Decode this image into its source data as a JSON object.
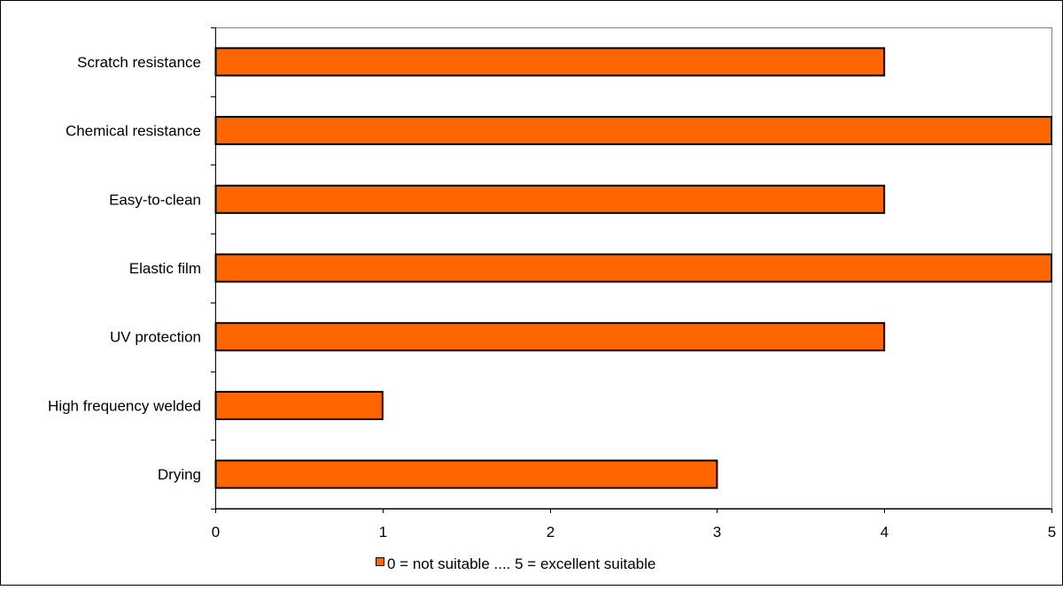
{
  "chart_data": {
    "type": "bar",
    "orientation": "horizontal",
    "title": "",
    "xlabel": "",
    "ylabel": "",
    "categories": [
      "Scratch resistance",
      "Chemical resistance",
      "Easy-to-clean",
      "Elastic film",
      "UV protection",
      "High frequency welded",
      "Drying"
    ],
    "series": [
      {
        "name": "0 = not suitable .... 5 = excellent suitable",
        "values": [
          4,
          5,
          4,
          5,
          4,
          1,
          3
        ],
        "color": "#ff6600"
      }
    ],
    "xlim": [
      0,
      5
    ],
    "x_ticks": [
      "0",
      "1",
      "2",
      "3",
      "4",
      "5"
    ],
    "grid": false,
    "legend_position": "bottom"
  }
}
